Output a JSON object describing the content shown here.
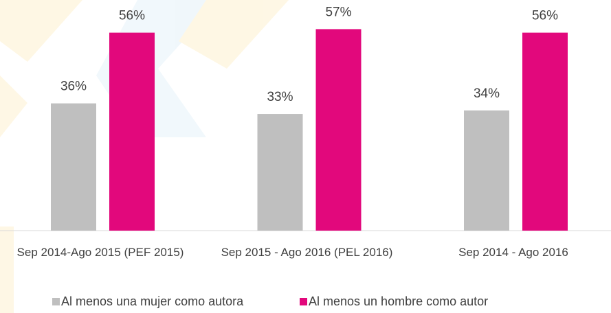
{
  "chart_data": {
    "type": "bar",
    "categories": [
      "Sep 2014-Ago 2015 (PEF 2015)",
      "Sep 2015 - Ago 2016 (PEL 2016)",
      "Sep 2014 - Ago 2016"
    ],
    "series": [
      {
        "name": "Al menos una mujer como autora",
        "color": "#bfbfbf",
        "values": [
          36,
          33,
          34
        ],
        "value_labels": [
          "36%",
          "33%",
          "34%"
        ]
      },
      {
        "name": "Al menos un hombre como autor",
        "color": "#e2087c",
        "values": [
          56,
          57,
          56
        ],
        "value_labels": [
          "56%",
          "57%",
          "56%"
        ]
      }
    ],
    "legend": "bottom"
  }
}
